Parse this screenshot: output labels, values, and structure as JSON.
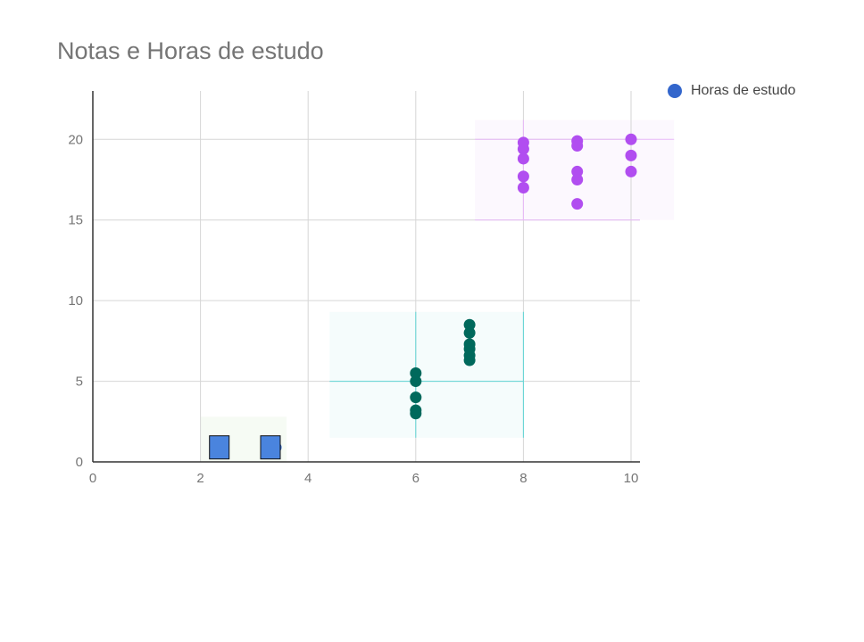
{
  "chart_data": {
    "type": "scatter",
    "title": "Notas e Horas de estudo",
    "xlabel": "",
    "ylabel": "",
    "xlim": [
      0,
      10
    ],
    "ylim": [
      0,
      23
    ],
    "x_ticks": [
      "0",
      "2",
      "4",
      "6",
      "8",
      "10"
    ],
    "y_ticks": [
      "0",
      "5",
      "10",
      "15",
      "20"
    ],
    "grid": true,
    "legend_position": "top-right",
    "series": [
      {
        "name": "Horas de estudo",
        "color": "#3366cc",
        "points": [
          [
            2.4,
            0.9
          ],
          [
            3.4,
            0.9
          ]
        ]
      },
      {
        "color": "#00695c",
        "points": [
          [
            6,
            5.5
          ],
          [
            6,
            5
          ],
          [
            6,
            4
          ],
          [
            6,
            3.2
          ],
          [
            6,
            3
          ],
          [
            7,
            8.5
          ],
          [
            7,
            8
          ],
          [
            7,
            7.3
          ],
          [
            7,
            7
          ],
          [
            7,
            6.6
          ],
          [
            7,
            6.3
          ]
        ]
      },
      {
        "color": "#b14ef0",
        "points": [
          [
            8,
            19.8
          ],
          [
            8,
            19.4
          ],
          [
            8,
            18.8
          ],
          [
            8,
            17.7
          ],
          [
            8,
            17
          ],
          [
            9,
            19.9
          ],
          [
            9,
            19.6
          ],
          [
            9,
            18
          ],
          [
            9,
            17.5
          ],
          [
            9,
            16
          ],
          [
            10,
            20
          ],
          [
            10,
            19
          ],
          [
            10,
            18
          ]
        ]
      }
    ],
    "cluster_boxes": [
      {
        "x": [
          2,
          3.6
        ],
        "y": [
          0,
          2.8
        ],
        "fill": "#f6fbf4",
        "line": ""
      },
      {
        "x": [
          4.4,
          8
        ],
        "y": [
          1.5,
          9.3
        ],
        "fill": "#f5fcfc",
        "line": "#5fd6d6",
        "cross_x": 6,
        "cross_y": 5
      },
      {
        "x": [
          7.1,
          10.8
        ],
        "y": [
          15,
          21.2
        ],
        "fill": "#fcf8fe",
        "line": "#e8b8f8",
        "cross_x": 8,
        "cross_y": 20
      }
    ],
    "markers": [
      {
        "x": 2.35,
        "y": 0.9,
        "shape": "square",
        "color": "#4a84de"
      },
      {
        "x": 3.3,
        "y": 0.9,
        "shape": "square",
        "color": "#4a84de"
      }
    ]
  }
}
